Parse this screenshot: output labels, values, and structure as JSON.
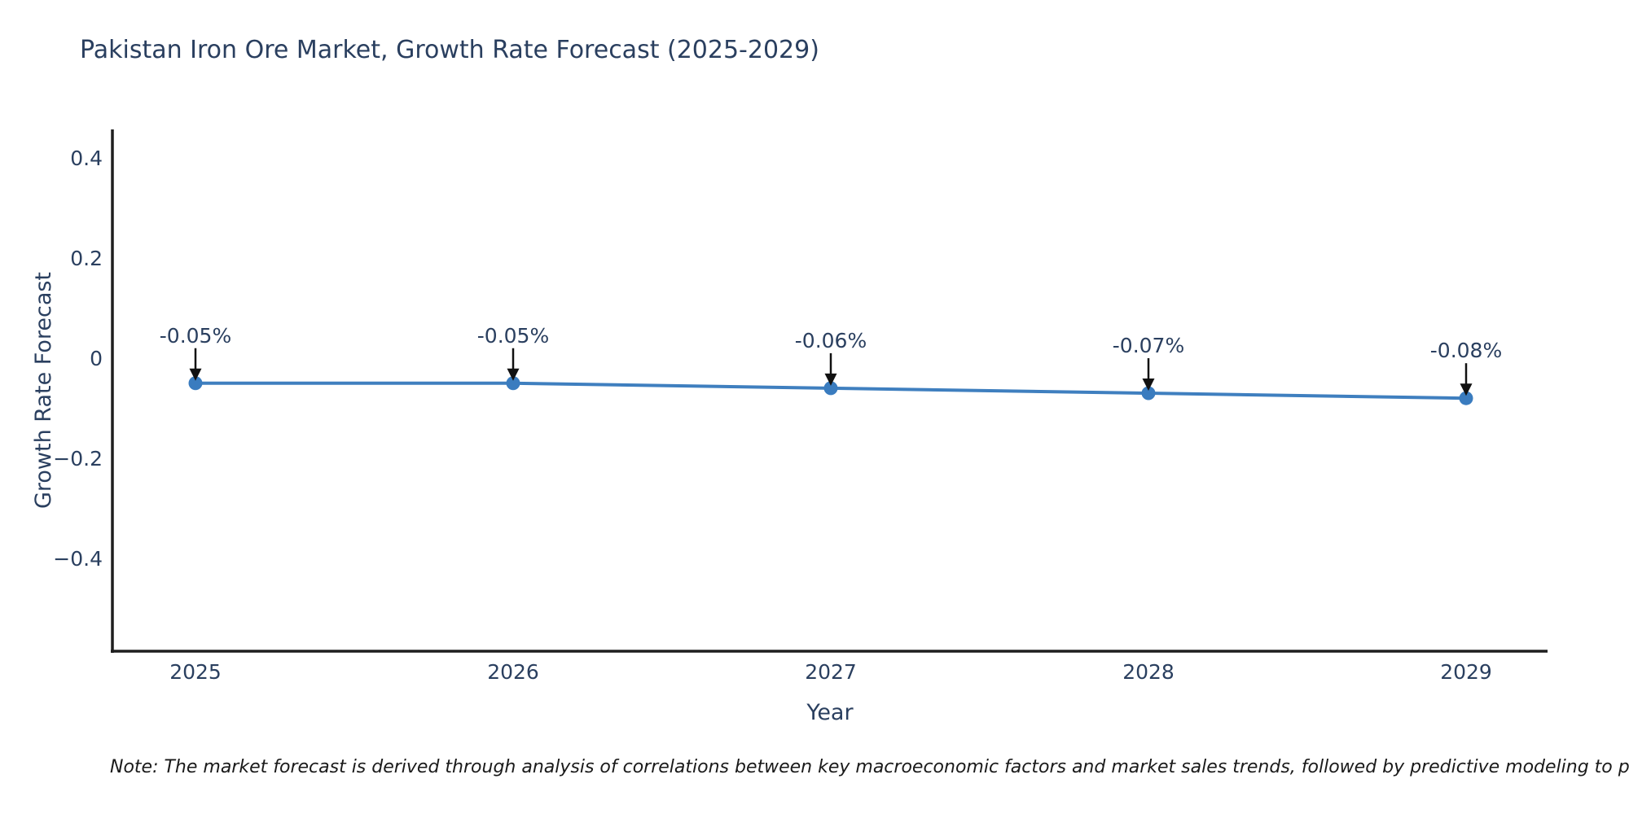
{
  "chart": {
    "title": "Pakistan Iron Ore Market, Growth Rate Forecast (2025-2029)"
  },
  "chart_data": {
    "type": "line",
    "title": "Pakistan Iron Ore Market, Growth Rate Forecast (2025-2029)",
    "xlabel": "Year",
    "ylabel": "Growth Rate Forecast",
    "x": [
      2025,
      2026,
      2027,
      2028,
      2029
    ],
    "y": [
      -0.05,
      -0.05,
      -0.06,
      -0.07,
      -0.08
    ],
    "point_labels": [
      "-0.05%",
      "-0.05%",
      "-0.06%",
      "-0.07%",
      "-0.08%"
    ],
    "x_tick_labels": [
      "2025",
      "2026",
      "2027",
      "2028",
      "2029"
    ],
    "y_tick_values": [
      0.4,
      0.2,
      0,
      -0.2,
      -0.4
    ],
    "y_tick_labels": [
      "0.4",
      "0.2",
      "0",
      "−0.2",
      "−0.4"
    ],
    "ylim": [
      -0.585,
      0.455
    ],
    "grid": false,
    "legend": "none",
    "line_color": "#3f7fbf",
    "marker_color": "#3a7cbf",
    "arrow_color": "#111111"
  },
  "note": {
    "text": "Note: The market forecast is derived through analysis of correlations between key macroeconomic factors and market sales trends, followed by predictive modeling to project future sa"
  },
  "colors": {
    "title": "#2a3f5f",
    "axis_line": "#1f1f1f",
    "tick_label": "#2a3f5f",
    "annotation_text": "#2a3f5f",
    "note_text": "#1a1a1a",
    "background": "#ffffff"
  }
}
